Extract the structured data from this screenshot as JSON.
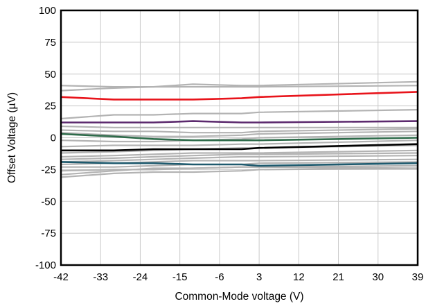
{
  "chart_data": {
    "type": "line",
    "title": "",
    "xlabel": "Common-Mode voltage (V)",
    "ylabel": "Offset Voltage (µV)",
    "xlim": [
      -42,
      39
    ],
    "ylim": [
      -100,
      100
    ],
    "xticks": [
      -42,
      -33,
      -24,
      -15,
      -6,
      3,
      12,
      21,
      30,
      39
    ],
    "yticks": [
      100,
      75,
      50,
      25,
      0,
      -25,
      -50,
      -75,
      -100
    ],
    "grid": true,
    "legend": "none",
    "series": [
      {
        "color": "#b3b3b3",
        "x": [
          -42,
          -30,
          -21,
          -12,
          -1,
          3,
          39
        ],
        "y": [
          41,
          40,
          40,
          42,
          41,
          41,
          44
        ]
      },
      {
        "color": "#b3b3b3",
        "x": [
          -42,
          -30,
          -21,
          -12,
          -1,
          3,
          39
        ],
        "y": [
          37,
          39,
          40,
          40,
          40,
          40,
          41
        ]
      },
      {
        "color": "#b3b3b3",
        "x": [
          -42,
          -30,
          -21,
          -12,
          -1,
          3,
          39
        ],
        "y": [
          15,
          18,
          18,
          19,
          19,
          20,
          22
        ]
      },
      {
        "color": "#b3b3b3",
        "x": [
          -42,
          -30,
          -21,
          -12,
          -1,
          3,
          39
        ],
        "y": [
          9,
          8,
          8,
          8,
          8,
          8,
          8
        ]
      },
      {
        "color": "#b3b3b3",
        "x": [
          -42,
          -30,
          -21,
          -12,
          -1,
          3,
          39
        ],
        "y": [
          6,
          5,
          5,
          4,
          4,
          5,
          7
        ]
      },
      {
        "color": "#b3b3b3",
        "x": [
          -42,
          -30,
          -21,
          -12,
          -1,
          3,
          39
        ],
        "y": [
          4,
          2,
          1,
          1,
          2,
          3,
          5
        ]
      },
      {
        "color": "#b3b3b3",
        "x": [
          -42,
          -30,
          -21,
          -12,
          -1,
          3,
          39
        ],
        "y": [
          -2,
          -3,
          -3,
          -2,
          -1,
          0,
          2
        ]
      },
      {
        "color": "#b3b3b3",
        "x": [
          -42,
          -30,
          -21,
          -12,
          -1,
          3,
          39
        ],
        "y": [
          -7,
          -6,
          -6,
          -6,
          -5,
          -5,
          -2
        ]
      },
      {
        "color": "#b3b3b3",
        "x": [
          -42,
          -30,
          -21,
          -12,
          -1,
          3,
          39
        ],
        "y": [
          -12,
          -11,
          -10,
          -9,
          -8,
          -8,
          -6
        ]
      },
      {
        "color": "#b3b3b3",
        "x": [
          -42,
          -30,
          -21,
          -12,
          -1,
          3,
          39
        ],
        "y": [
          -15,
          -14,
          -13,
          -12,
          -12,
          -12,
          -10
        ]
      },
      {
        "color": "#b3b3b3",
        "x": [
          -42,
          -30,
          -21,
          -12,
          -1,
          3,
          39
        ],
        "y": [
          -17,
          -16,
          -15,
          -14,
          -13,
          -13,
          -12
        ]
      },
      {
        "color": "#b3b3b3",
        "x": [
          -42,
          -30,
          -21,
          -12,
          -1,
          3,
          39
        ],
        "y": [
          -19,
          -18,
          -17,
          -16,
          -15,
          -15,
          -14
        ]
      },
      {
        "color": "#b3b3b3",
        "x": [
          -42,
          -30,
          -21,
          -12,
          -1,
          3,
          39
        ],
        "y": [
          -21,
          -20,
          -19,
          -18,
          -18,
          -18,
          -17
        ]
      },
      {
        "color": "#b3b3b3",
        "x": [
          -42,
          -30,
          -21,
          -12,
          -1,
          3,
          39
        ],
        "y": [
          -23,
          -23,
          -22,
          -21,
          -21,
          -20,
          -19
        ]
      },
      {
        "color": "#b3b3b3",
        "x": [
          -42,
          -30,
          -21,
          -12,
          -1,
          3,
          39
        ],
        "y": [
          -26,
          -25,
          -25,
          -24,
          -23,
          -23,
          -22
        ]
      },
      {
        "color": "#b3b3b3",
        "x": [
          -42,
          -30,
          -21,
          -12,
          -1,
          3,
          39
        ],
        "y": [
          -29,
          -26,
          -24,
          -24,
          -23,
          -23,
          -24
        ]
      },
      {
        "color": "#b3b3b3",
        "x": [
          -42,
          -30,
          -21,
          -12,
          -1,
          3,
          39
        ],
        "y": [
          -31,
          -28,
          -27,
          -27,
          -26,
          -25,
          -24
        ]
      },
      {
        "color": "#e8141b",
        "x": [
          -42,
          -30,
          -21,
          -12,
          -1,
          3,
          39
        ],
        "y": [
          32,
          30,
          30,
          30,
          31,
          32,
          36
        ]
      },
      {
        "color": "#5c2a6e",
        "x": [
          -42,
          -30,
          -21,
          -12,
          -1,
          3,
          39
        ],
        "y": [
          12,
          12,
          12,
          13,
          12,
          12,
          13
        ]
      },
      {
        "color": "#2e6b4a",
        "x": [
          -42,
          -30,
          -21,
          -12,
          -1,
          3,
          39
        ],
        "y": [
          3,
          1,
          -1,
          -2,
          -2,
          -2,
          0
        ]
      },
      {
        "color": "#1e5a6e",
        "x": [
          -42,
          -30,
          -21,
          -12,
          -1,
          3,
          39
        ],
        "y": [
          -19,
          -20,
          -20,
          -21,
          -21,
          -22,
          -20
        ]
      },
      {
        "color": "#000000",
        "x": [
          -42,
          -30,
          -21,
          -12,
          -1,
          3,
          39
        ],
        "y": [
          -10,
          -10,
          -9,
          -9,
          -9,
          -8,
          -5
        ]
      }
    ]
  }
}
